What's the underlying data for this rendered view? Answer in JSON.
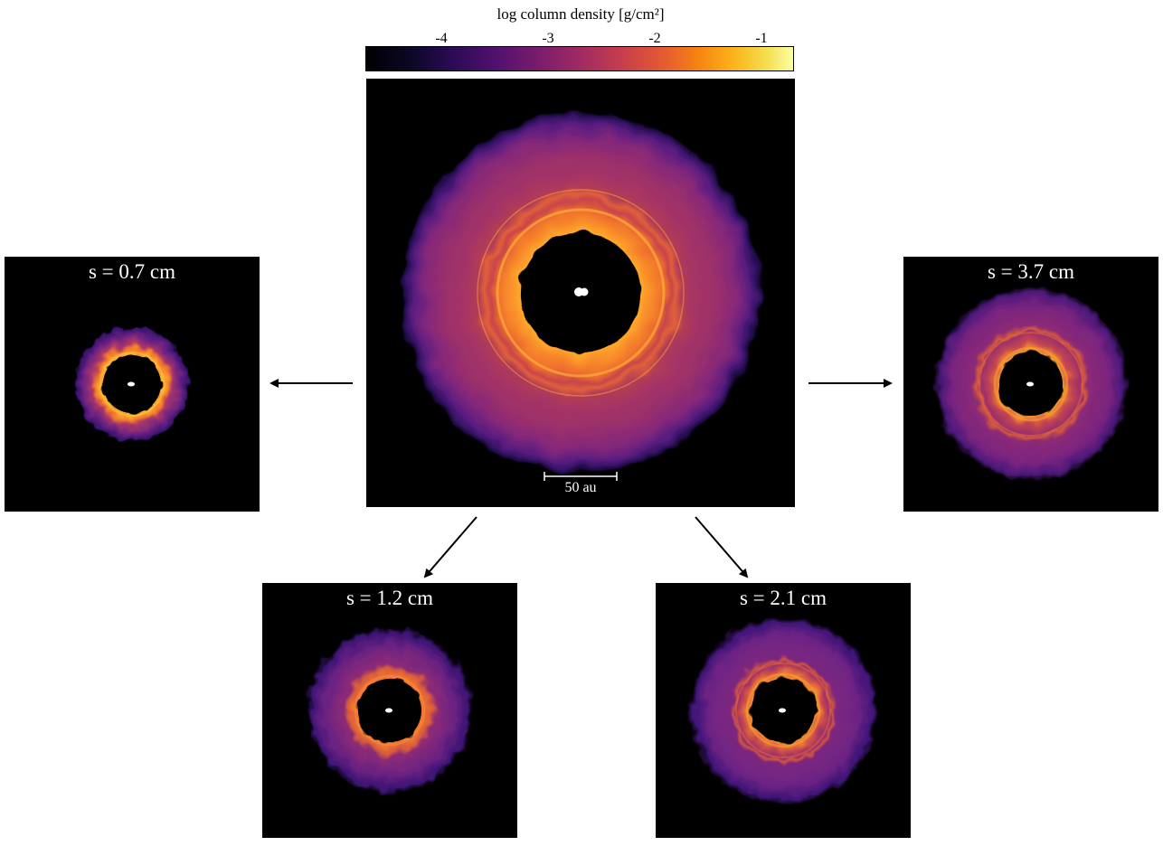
{
  "colorbar": {
    "title": "log column density [g/cm²]",
    "colormap": "inferno",
    "ticks": [
      "-4",
      "-3",
      "-2",
      "-1"
    ],
    "tick_values": [
      -4,
      -3,
      -2,
      -1
    ],
    "range": [
      -4.7,
      -0.7
    ]
  },
  "main_panel": {
    "scale_bar_label": "50 au",
    "scale_bar_au": 50
  },
  "panels": {
    "left": {
      "label": "s = 0.7 cm"
    },
    "right": {
      "label": "s = 3.7 cm"
    },
    "bottom_left": {
      "label": "s = 1.2 cm"
    },
    "bottom_right": {
      "label": "s = 2.1 cm"
    }
  },
  "colors": {
    "background": "#000000",
    "ring_bright": "#ffae2a",
    "ring_mid": "#e25b35",
    "halo": "#8c2a80",
    "star": "#ffffff",
    "arrow": "#000000"
  }
}
